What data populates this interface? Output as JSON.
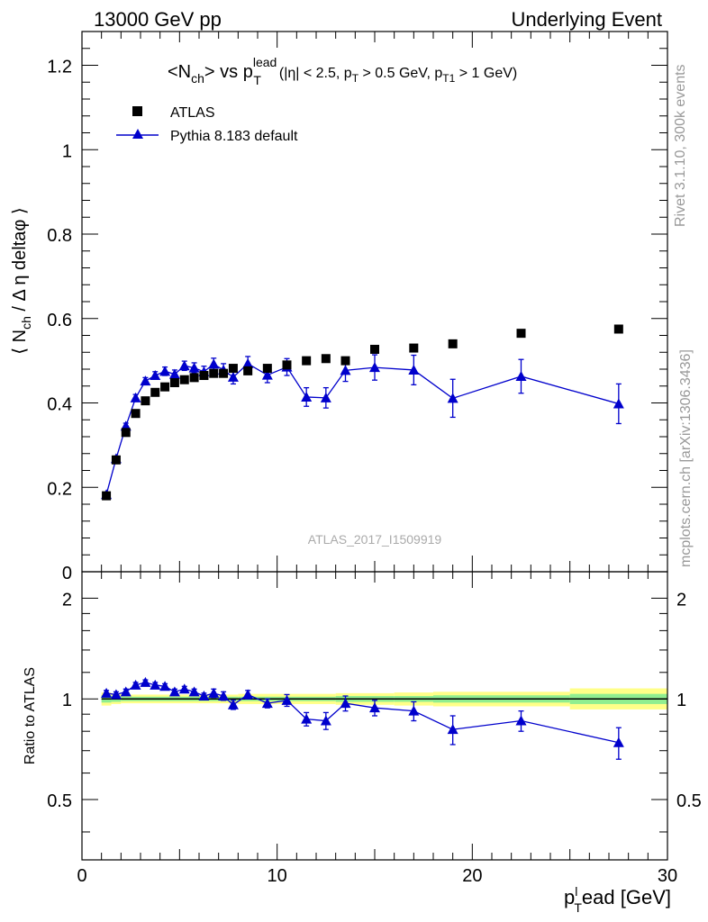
{
  "header": {
    "left": "13000 GeV pp",
    "right": "Underlying Event"
  },
  "side_labels": {
    "rivet": "Rivet 3.1.10,  300k events",
    "mcplots": "mcplots.cern.ch [arXiv:1306.3436]"
  },
  "chart_data": [
    {
      "type": "scatter",
      "title": "<N_ch> vs p_T^lead (|η| < 2.5, p_T > 0.5 GeV, p_T1 > 1 GeV)",
      "title_parts": {
        "main_a": "<N",
        "main_sub": "ch",
        "main_b": "> vs p",
        "main_sub2": "T",
        "main_sup": "lead",
        "cond_a": "(|η| < 2.5, p",
        "cond_sub1": "T",
        "cond_b": " > 0.5 GeV, p",
        "cond_sub2": "T1",
        "cond_c": " > 1 GeV)"
      },
      "ylabel_parts": {
        "a": "⟨ N",
        "sub": "ch",
        "b": " / Δ η deltaφ ⟩"
      },
      "watermark": "ATLAS_2017_I1509919",
      "legend": [
        "ATLAS",
        "Pythia 8.183 default"
      ],
      "xlim": [
        0,
        30
      ],
      "ylim": [
        0,
        1.28
      ],
      "y_ticks": [
        0,
        0.2,
        0.4,
        0.6,
        0.8,
        1,
        1.2
      ],
      "y_tick_labels": [
        "0",
        "0.2",
        "0.4",
        "0.6",
        "0.8",
        "1",
        "1.2"
      ],
      "series": [
        {
          "name": "ATLAS",
          "color": "#000000",
          "marker": "square",
          "x": [
            1.25,
            1.75,
            2.25,
            2.75,
            3.25,
            3.75,
            4.25,
            4.75,
            5.25,
            5.75,
            6.25,
            6.75,
            7.25,
            7.75,
            8.5,
            9.5,
            10.5,
            11.5,
            12.5,
            13.5,
            15,
            17,
            19,
            22.5,
            27.5
          ],
          "y": [
            0.18,
            0.265,
            0.33,
            0.375,
            0.405,
            0.425,
            0.438,
            0.448,
            0.455,
            0.46,
            0.465,
            0.47,
            0.47,
            0.482,
            0.476,
            0.482,
            0.49,
            0.5,
            0.505,
            0.5,
            0.527,
            0.53,
            0.54,
            0.565,
            0.575
          ]
        },
        {
          "name": "Pythia 8.183 default",
          "color": "#0000cc",
          "marker": "triangle",
          "x": [
            1.25,
            1.75,
            2.25,
            2.75,
            3.25,
            3.75,
            4.25,
            4.75,
            5.25,
            5.75,
            6.25,
            6.75,
            7.25,
            7.75,
            8.5,
            9.5,
            10.5,
            11.5,
            12.5,
            13.5,
            15,
            17,
            19,
            22.5,
            27.5
          ],
          "y": [
            0.183,
            0.268,
            0.345,
            0.412,
            0.452,
            0.465,
            0.475,
            0.468,
            0.488,
            0.483,
            0.474,
            0.492,
            0.478,
            0.461,
            0.493,
            0.466,
            0.485,
            0.414,
            0.412,
            0.477,
            0.484,
            0.478,
            0.411,
            0.463,
            0.398
          ],
          "yerr": [
            0.004,
            0.006,
            0.007,
            0.008,
            0.008,
            0.009,
            0.01,
            0.01,
            0.011,
            0.012,
            0.013,
            0.014,
            0.015,
            0.016,
            0.017,
            0.018,
            0.02,
            0.022,
            0.024,
            0.026,
            0.03,
            0.035,
            0.045,
            0.04,
            0.047
          ]
        }
      ]
    },
    {
      "type": "scatter",
      "ylabel": "Ratio to ATLAS",
      "xlabel_parts": {
        "a": "p",
        "sub": "T",
        "b": "ead [GeV]",
        "sup": "l"
      },
      "xlim": [
        0,
        30
      ],
      "ylim": [
        0.33,
        2.4
      ],
      "y_scale": "log",
      "y_ticks": [
        0.5,
        1,
        2
      ],
      "y_tick_labels": [
        "0.5",
        "1",
        "2"
      ],
      "x_ticks": [
        0,
        10,
        20,
        30
      ],
      "x_tick_labels": [
        "0",
        "10",
        "20",
        "30"
      ],
      "bands": [
        {
          "x0": 1.0,
          "x1": 1.5,
          "inner": [
            0.975,
            1.025
          ],
          "outer": [
            0.955,
            1.045
          ]
        },
        {
          "x0": 1.5,
          "x1": 2.0,
          "inner": [
            0.98,
            1.02
          ],
          "outer": [
            0.965,
            1.035
          ]
        },
        {
          "x0": 2.0,
          "x1": 8.0,
          "inner": [
            0.985,
            1.015
          ],
          "outer": [
            0.97,
            1.03
          ]
        },
        {
          "x0": 8.0,
          "x1": 13.0,
          "inner": [
            0.985,
            1.015
          ],
          "outer": [
            0.965,
            1.035
          ]
        },
        {
          "x0": 13.0,
          "x1": 16.0,
          "inner": [
            0.98,
            1.02
          ],
          "outer": [
            0.96,
            1.04
          ]
        },
        {
          "x0": 16.0,
          "x1": 18.0,
          "inner": [
            0.98,
            1.02
          ],
          "outer": [
            0.955,
            1.045
          ]
        },
        {
          "x0": 18.0,
          "x1": 25.0,
          "inner": [
            0.975,
            1.025
          ],
          "outer": [
            0.95,
            1.05
          ]
        },
        {
          "x0": 25.0,
          "x1": 30.0,
          "inner": [
            0.965,
            1.035
          ],
          "outer": [
            0.93,
            1.075
          ]
        }
      ],
      "band_colors": {
        "inner": "#90ee90",
        "outer": "#ffff88"
      },
      "series": [
        {
          "name": "Pythia 8.183 default",
          "color": "#0000cc",
          "marker": "triangle",
          "x": [
            1.25,
            1.75,
            2.25,
            2.75,
            3.25,
            3.75,
            4.25,
            4.75,
            5.25,
            5.75,
            6.25,
            6.75,
            7.25,
            7.75,
            8.5,
            9.5,
            10.5,
            11.5,
            12.5,
            13.5,
            15,
            17,
            19,
            22.5,
            27.5
          ],
          "y": [
            1.04,
            1.03,
            1.05,
            1.1,
            1.12,
            1.1,
            1.09,
            1.05,
            1.07,
            1.05,
            1.02,
            1.04,
            1.02,
            0.96,
            1.03,
            0.97,
            0.99,
            0.87,
            0.86,
            0.97,
            0.94,
            0.92,
            0.81,
            0.86,
            0.74
          ],
          "yerr": [
            0.02,
            0.02,
            0.02,
            0.02,
            0.02,
            0.02,
            0.02,
            0.02,
            0.02,
            0.02,
            0.02,
            0.03,
            0.03,
            0.03,
            0.03,
            0.03,
            0.04,
            0.04,
            0.05,
            0.05,
            0.05,
            0.06,
            0.08,
            0.06,
            0.08
          ]
        }
      ]
    }
  ]
}
